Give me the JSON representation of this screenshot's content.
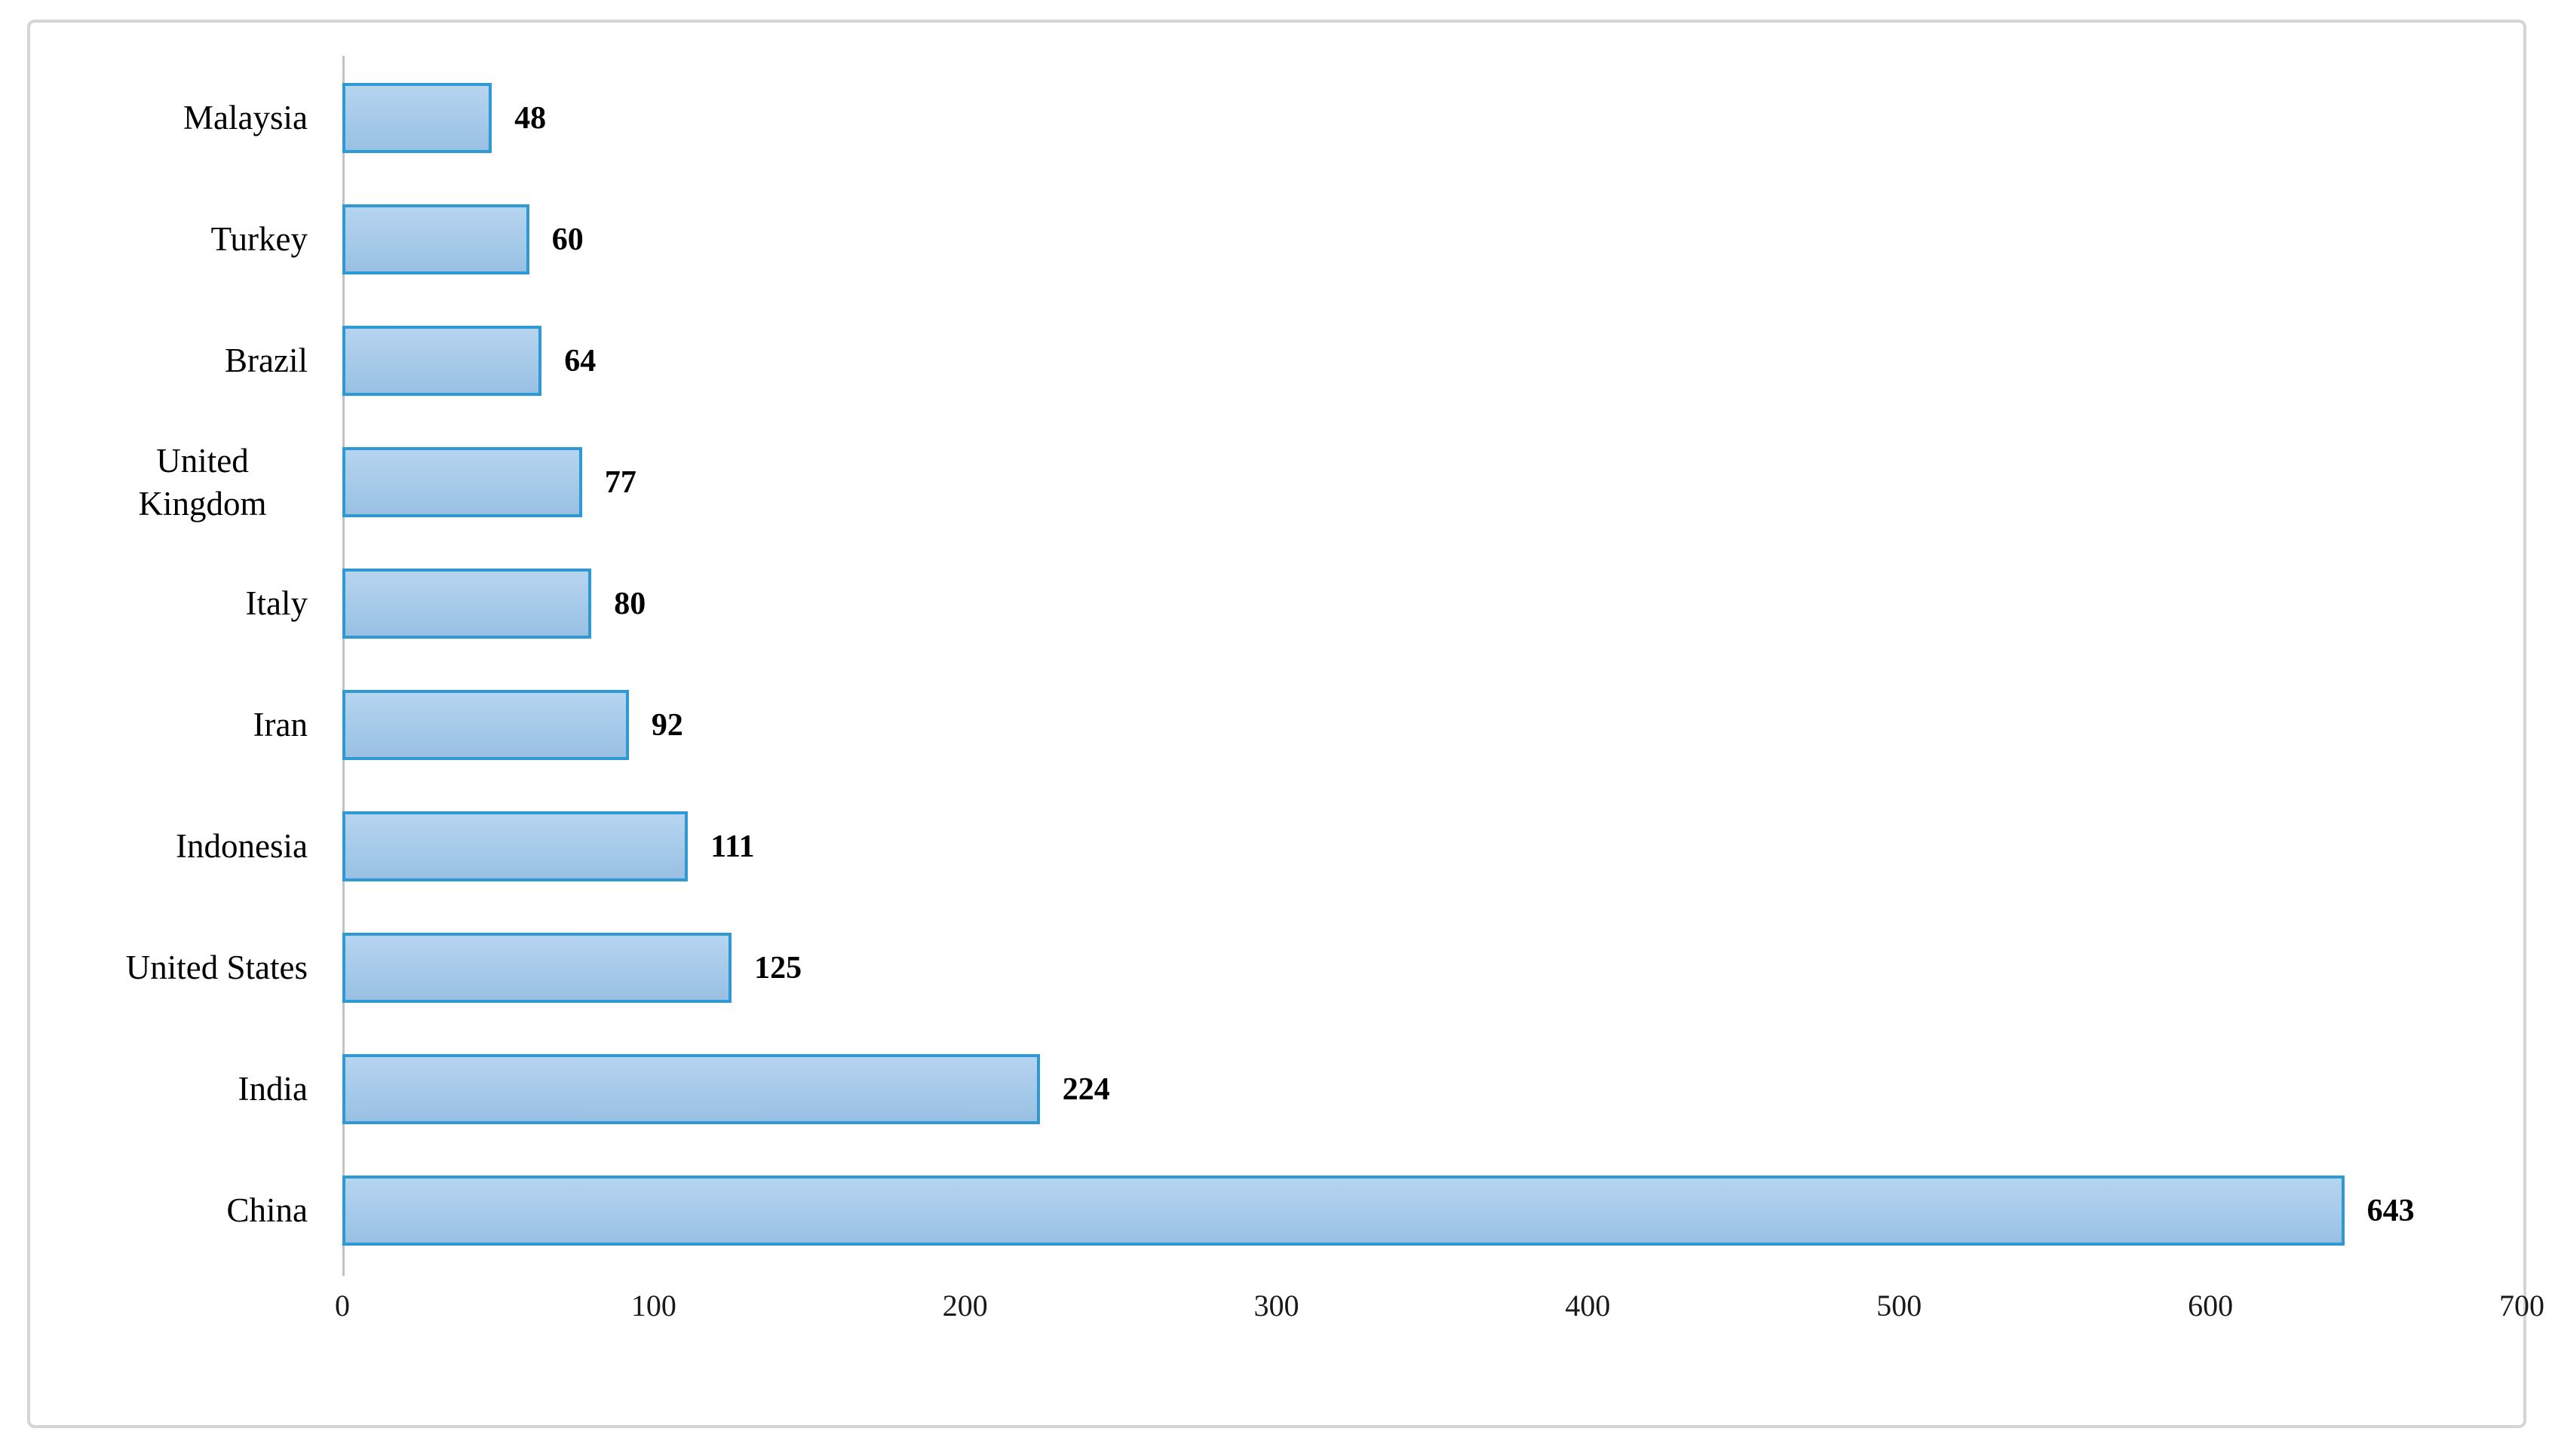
{
  "figure": {
    "border_color": "#d5d5d5",
    "background": "#ffffff"
  },
  "chart_data": {
    "type": "bar",
    "orientation": "horizontal",
    "title": "",
    "xlabel": "",
    "ylabel": "",
    "categories": [
      "Malaysia",
      "Turkey",
      "Brazil",
      "United Kingdom",
      "Italy",
      "Iran",
      "Indonesia",
      "United States",
      "India",
      "China"
    ],
    "values": [
      48,
      60,
      64,
      77,
      80,
      92,
      111,
      125,
      224,
      643
    ],
    "data_labels": [
      "48",
      "60",
      "64",
      "77",
      "80",
      "92",
      "111",
      "125",
      "224",
      "643"
    ],
    "xlim": [
      0,
      700
    ],
    "x_ticks": [
      0,
      100,
      200,
      300,
      400,
      500,
      600,
      700
    ],
    "grid": false,
    "legend": null,
    "data_labels_shown": true,
    "colors": {
      "bar_fill_top": "#b6d4f0",
      "bar_fill_bottom": "#99c0e3",
      "bar_border": "#2e99d3",
      "axis_line": "#c2c2c2",
      "text": "#000000"
    }
  }
}
